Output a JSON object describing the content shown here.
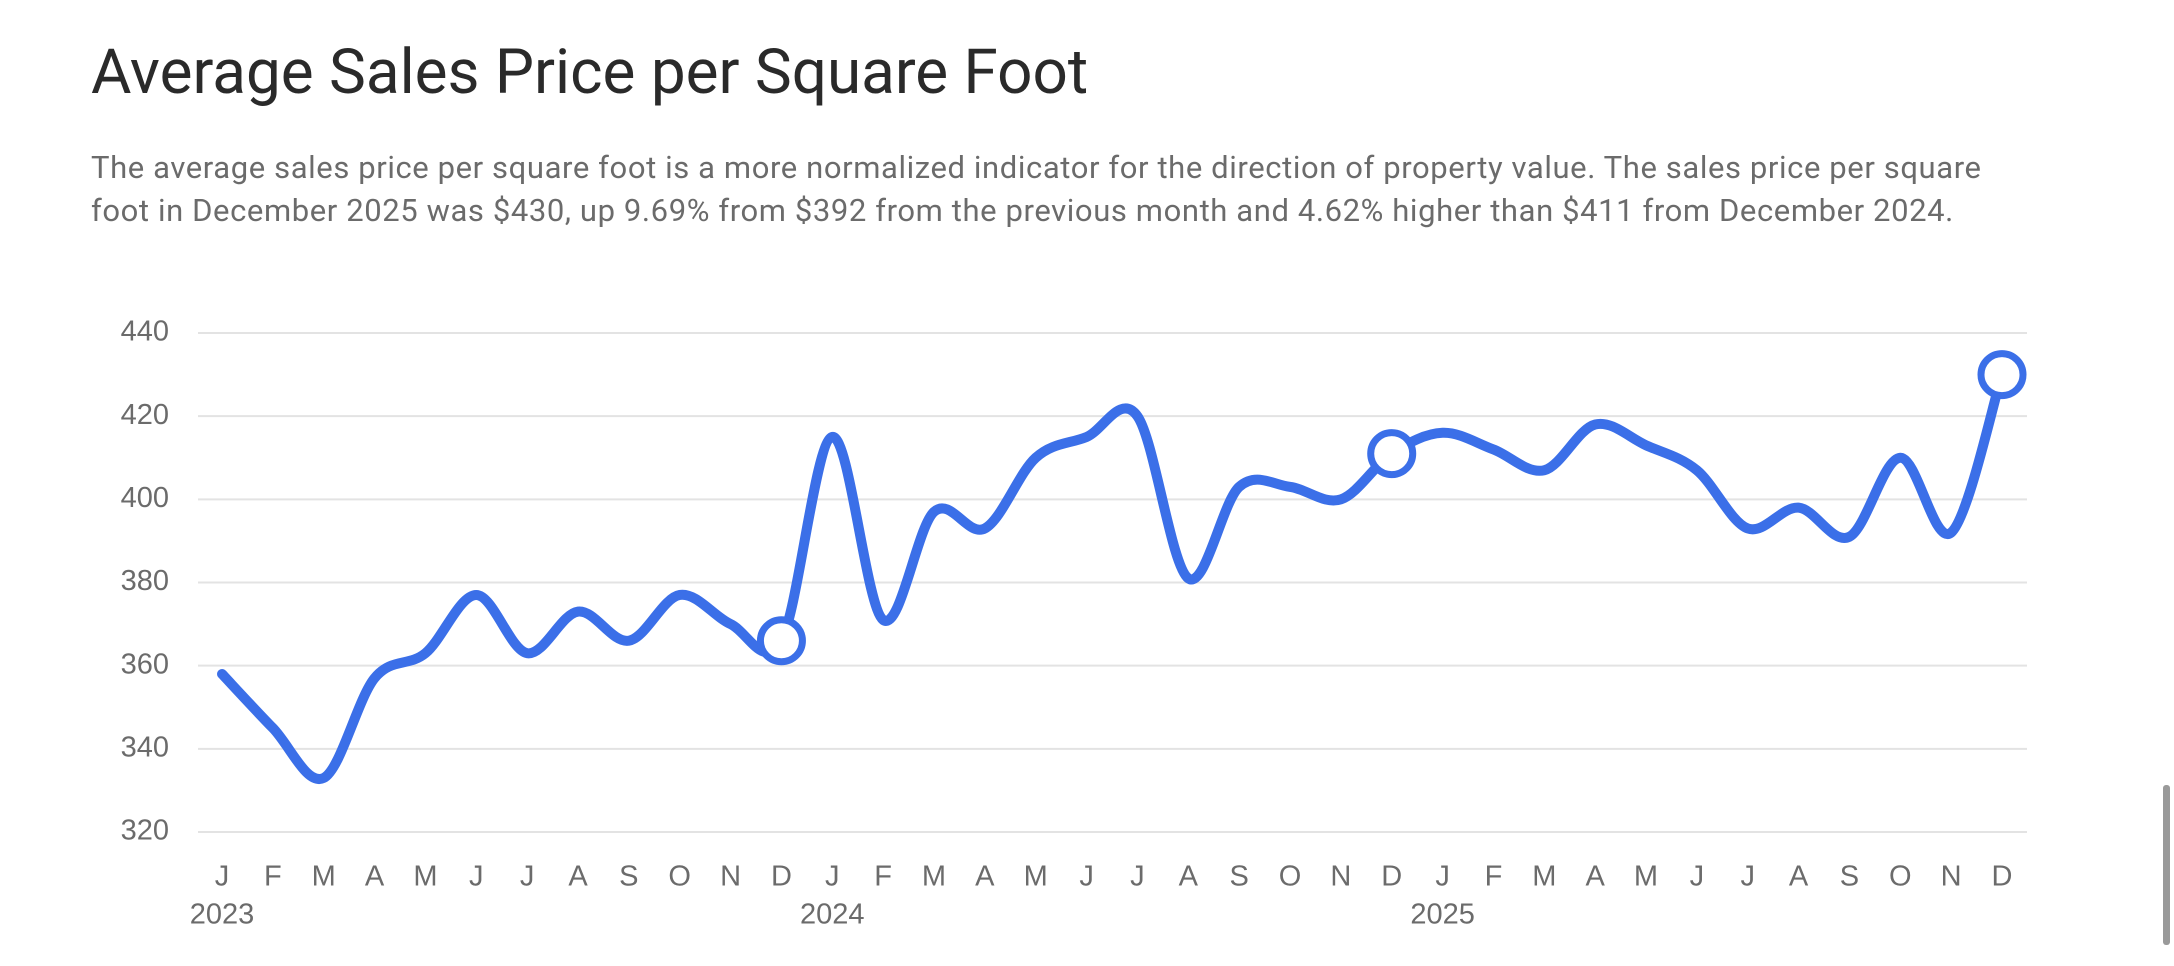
{
  "chart_data": {
    "type": "line",
    "title": "Average Sales Price per Square Foot",
    "subtitle": "The average sales price per square foot is a more normalized indicator for the direction of property value. The sales price per square foot in December 2025 was $430, up 9.69% from $392 from the previous month and 4.62% higher than $411 from December 2024.",
    "categories": [
      "J",
      "F",
      "M",
      "A",
      "M",
      "J",
      "J",
      "A",
      "S",
      "O",
      "N",
      "D",
      "J",
      "F",
      "M",
      "A",
      "M",
      "J",
      "J",
      "A",
      "S",
      "O",
      "N",
      "D",
      "J",
      "F",
      "M",
      "A",
      "M",
      "J",
      "J",
      "A",
      "S",
      "O",
      "N",
      "D"
    ],
    "years": [
      "2023",
      "2024",
      "2025"
    ],
    "series": [
      {
        "name": "Average Sales Price per Square Foot",
        "color": "#3b6fe8",
        "values": [
          358,
          345,
          333,
          357,
          363,
          377,
          363,
          373,
          366,
          377,
          370,
          366,
          415,
          371,
          397,
          393,
          410,
          415,
          420,
          381,
          403,
          403,
          400,
          411,
          416,
          412,
          407,
          418,
          413,
          407,
          393,
          398,
          391,
          410,
          392,
          430
        ]
      }
    ],
    "ylim": [
      320,
      440
    ],
    "yticks": [
      320,
      340,
      360,
      380,
      400,
      420,
      440
    ],
    "grid": true
  }
}
